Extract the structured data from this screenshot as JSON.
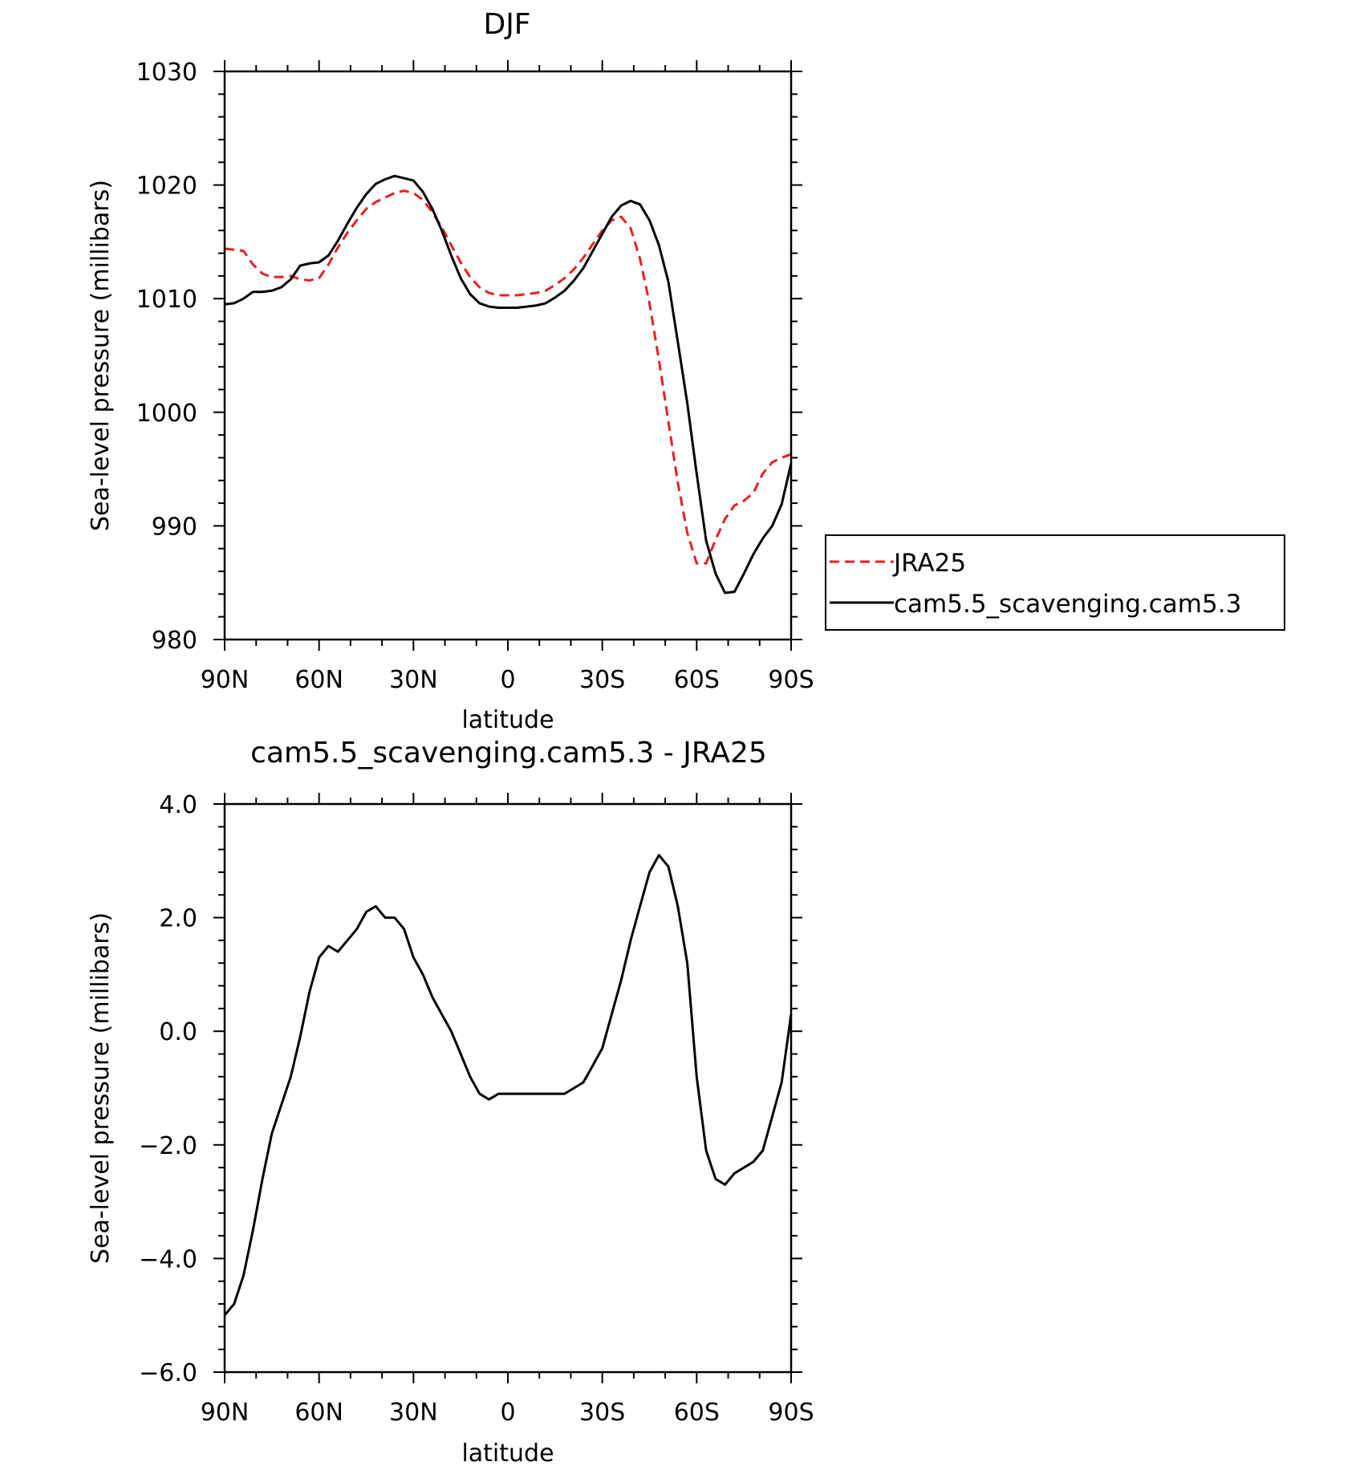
{
  "chart_data": [
    {
      "type": "line",
      "title": "DJF",
      "xlabel": "latitude",
      "ylabel": "Sea-level pressure (millibars)",
      "xlim": [
        90,
        -90
      ],
      "ylim": [
        980,
        1030
      ],
      "x_tick_values": [
        90,
        60,
        30,
        0,
        -30,
        -60,
        -90
      ],
      "x_tick_labels": [
        "90N",
        "60N",
        "30N",
        "0",
        "30S",
        "60S",
        "90S"
      ],
      "y_tick_values": [
        980,
        990,
        1000,
        1010,
        1020,
        1030
      ],
      "y_tick_labels": [
        "980",
        "990",
        "1000",
        "1010",
        "1020",
        "1030"
      ],
      "legend_position": "right",
      "x": [
        90,
        87,
        84,
        81,
        78,
        75,
        72,
        69,
        66,
        63,
        60,
        57,
        54,
        51,
        48,
        45,
        42,
        39,
        36,
        33,
        30,
        27,
        24,
        21,
        18,
        15,
        12,
        9,
        6,
        3,
        0,
        -3,
        -6,
        -9,
        -12,
        -15,
        -18,
        -21,
        -24,
        -27,
        -30,
        -33,
        -36,
        -39,
        -42,
        -45,
        -48,
        -51,
        -54,
        -57,
        -60,
        -63,
        -66,
        -69,
        -72,
        -75,
        -78,
        -81,
        -84,
        -87,
        -90
      ],
      "series": [
        {
          "name": "JRA25",
          "color": "#e8201f",
          "dash": "dashed",
          "values": [
            1014.4,
            1014.3,
            1014.2,
            1013.0,
            1012.2,
            1011.9,
            1011.9,
            1012.0,
            1011.7,
            1011.6,
            1011.8,
            1013.0,
            1014.5,
            1015.8,
            1016.9,
            1017.9,
            1018.5,
            1018.9,
            1019.3,
            1019.5,
            1019.3,
            1018.7,
            1017.6,
            1016.3,
            1014.7,
            1013.2,
            1011.9,
            1011.0,
            1010.5,
            1010.3,
            1010.3,
            1010.3,
            1010.4,
            1010.5,
            1010.7,
            1011.2,
            1011.8,
            1012.6,
            1013.6,
            1014.8,
            1016.0,
            1016.9,
            1017.2,
            1016.2,
            1013.5,
            1009.6,
            1004.6,
            999.2,
            993.8,
            989.4,
            986.7,
            986.7,
            988.8,
            990.6,
            991.8,
            992.2,
            992.9,
            994.6,
            995.6,
            996.0,
            996.3
          ]
        },
        {
          "name": "cam5.5_scavenging.cam5.3",
          "color": "#000000",
          "dash": "solid",
          "values": [
            1009.5,
            1009.6,
            1010.0,
            1010.6,
            1010.6,
            1010.7,
            1011.0,
            1011.7,
            1012.9,
            1013.1,
            1013.2,
            1013.8,
            1015.1,
            1016.6,
            1018.0,
            1019.2,
            1020.1,
            1020.5,
            1020.8,
            1020.6,
            1020.4,
            1019.4,
            1017.9,
            1016.0,
            1013.8,
            1011.8,
            1010.4,
            1009.6,
            1009.3,
            1009.2,
            1009.2,
            1009.2,
            1009.3,
            1009.4,
            1009.6,
            1010.1,
            1010.7,
            1011.6,
            1012.7,
            1014.2,
            1015.7,
            1017.2,
            1018.2,
            1018.6,
            1018.3,
            1016.9,
            1014.7,
            1011.5,
            1006.2,
            1000.8,
            994.6,
            988.7,
            985.8,
            984.1,
            984.2,
            985.8,
            987.5,
            988.9,
            990.0,
            991.9,
            995.5
          ]
        }
      ]
    },
    {
      "type": "line",
      "title": "cam5.5_scavenging.cam5.3 - JRA25",
      "xlabel": "latitude",
      "ylabel": "Sea-level pressure (millibars)",
      "xlim": [
        90,
        -90
      ],
      "ylim": [
        -6,
        4
      ],
      "x_tick_values": [
        90,
        60,
        30,
        0,
        -30,
        -60,
        -90
      ],
      "x_tick_labels": [
        "90N",
        "60N",
        "30N",
        "0",
        "30S",
        "60S",
        "90S"
      ],
      "y_tick_values": [
        -6,
        -4,
        -2,
        0,
        2,
        4
      ],
      "y_tick_labels": [
        "−6.0",
        "−4.0",
        "−2.0",
        "0.0",
        "2.0",
        "4.0"
      ],
      "x": [
        90,
        87,
        84,
        81,
        78,
        75,
        72,
        69,
        66,
        63,
        60,
        57,
        54,
        51,
        48,
        45,
        42,
        39,
        36,
        33,
        30,
        27,
        24,
        21,
        18,
        15,
        12,
        9,
        6,
        3,
        0,
        -3,
        -6,
        -9,
        -12,
        -15,
        -18,
        -21,
        -24,
        -27,
        -30,
        -33,
        -36,
        -39,
        -42,
        -45,
        -48,
        -51,
        -54,
        -57,
        -60,
        -63,
        -66,
        -69,
        -72,
        -75,
        -78,
        -81,
        -84,
        -87,
        -90
      ],
      "series": [
        {
          "color": "#000000",
          "dash": "solid",
          "values": [
            -5.0,
            -4.8,
            -4.3,
            -3.5,
            -2.6,
            -1.8,
            -1.3,
            -0.8,
            -0.1,
            0.7,
            1.3,
            1.5,
            1.4,
            1.6,
            1.8,
            2.1,
            2.2,
            2.0,
            2.0,
            1.8,
            1.3,
            1.0,
            0.6,
            0.3,
            0.0,
            -0.4,
            -0.8,
            -1.1,
            -1.2,
            -1.1,
            -1.1,
            -1.1,
            -1.1,
            -1.1,
            -1.1,
            -1.1,
            -1.1,
            -1.0,
            -0.9,
            -0.6,
            -0.3,
            0.3,
            0.9,
            1.6,
            2.2,
            2.8,
            3.1,
            2.9,
            2.2,
            1.2,
            -0.8,
            -2.1,
            -2.6,
            -2.7,
            -2.5,
            -2.4,
            -2.3,
            -2.1,
            -1.5,
            -0.9,
            0.3
          ]
        }
      ]
    }
  ],
  "legend": [
    {
      "label": "JRA25",
      "color": "#e8201f",
      "dash": "dashed"
    },
    {
      "label": "cam5.5_scavenging.cam5.3",
      "color": "#000000",
      "dash": "solid"
    }
  ]
}
